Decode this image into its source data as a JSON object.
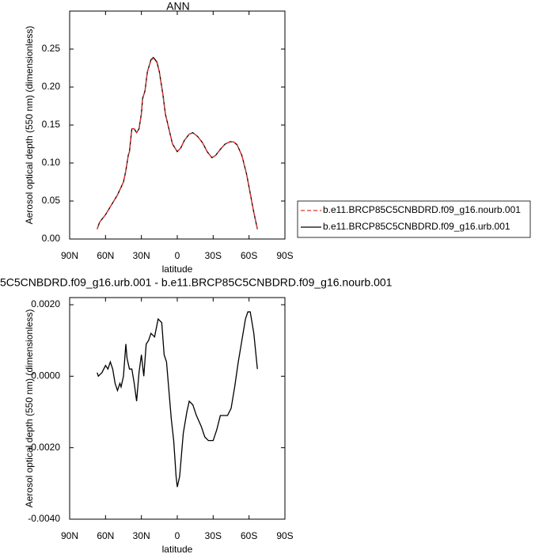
{
  "chart_data": [
    {
      "type": "line",
      "title": "ANN",
      "x_label": "latitude",
      "y_label": "Aerosol optical depth (550 nm) (dimensionless)",
      "x": [
        67,
        65,
        60,
        55,
        50,
        45,
        43,
        41,
        40,
        39,
        38,
        36,
        34,
        32,
        30,
        29,
        27,
        25,
        22,
        20,
        17,
        15,
        12,
        10,
        7,
        4,
        0,
        -3,
        -6,
        -10,
        -13,
        -17,
        -21,
        -25,
        -29,
        -32,
        -36,
        -40,
        -44,
        -47,
        -50,
        -54,
        -58,
        -61,
        -64,
        -67
      ],
      "series": [
        {
          "name": "b.e11.BRCP85C5CNBDRD.f09_g16.nourb.001",
          "color": "#e8312f",
          "line_style": "dashed",
          "values": [
            0.013,
            0.022,
            0.032,
            0.045,
            0.058,
            0.075,
            0.09,
            0.11,
            0.115,
            0.13,
            0.145,
            0.145,
            0.14,
            0.145,
            0.165,
            0.185,
            0.195,
            0.22,
            0.235,
            0.238,
            0.232,
            0.22,
            0.19,
            0.165,
            0.145,
            0.125,
            0.115,
            0.12,
            0.13,
            0.138,
            0.14,
            0.135,
            0.127,
            0.115,
            0.107,
            0.11,
            0.118,
            0.125,
            0.128,
            0.128,
            0.124,
            0.11,
            0.085,
            0.06,
            0.035,
            0.013
          ]
        },
        {
          "name": "b.e11.BRCP85C5CNBDRD.f09_g16.urb.001",
          "color": "#000000",
          "line_style": "solid",
          "values": [
            0.013,
            0.022,
            0.032,
            0.045,
            0.058,
            0.075,
            0.09,
            0.11,
            0.115,
            0.13,
            0.145,
            0.145,
            0.14,
            0.145,
            0.165,
            0.185,
            0.195,
            0.22,
            0.236,
            0.239,
            0.233,
            0.22,
            0.19,
            0.165,
            0.145,
            0.125,
            0.115,
            0.12,
            0.13,
            0.138,
            0.14,
            0.135,
            0.127,
            0.115,
            0.107,
            0.11,
            0.118,
            0.125,
            0.128,
            0.128,
            0.124,
            0.11,
            0.085,
            0.06,
            0.035,
            0.013
          ]
        }
      ],
      "xlim": [
        90,
        -90
      ],
      "xticks": [
        {
          "value": 90,
          "label": "90N"
        },
        {
          "value": 60,
          "label": "60N"
        },
        {
          "value": 30,
          "label": "30N"
        },
        0,
        {
          "value": -30,
          "label": "30S"
        },
        {
          "value": -60,
          "label": "60S"
        },
        {
          "value": -90,
          "label": "90S"
        }
      ],
      "ylim": [
        0,
        0.3
      ],
      "yticks": [
        {
          "value": 0,
          "label": "0.00"
        },
        0.05,
        {
          "value": 0.1,
          "label": "0.10"
        },
        0.15,
        {
          "value": 0.2,
          "label": "0.20"
        },
        0.25
      ],
      "legend": "right"
    },
    {
      "type": "line",
      "title": "5C5CNBDRD.f09_g16.urb.001 - b.e11.BRCP85C5CNBDRD.f09_g16.nourb.001",
      "x_label": "latitude",
      "y_label": "Aerosol optical depth (550 nm) (dimensionless)",
      "x": [
        67,
        66,
        63,
        60,
        58,
        56,
        54,
        52,
        50,
        48,
        47,
        45,
        43,
        42,
        40,
        38,
        36,
        34,
        32,
        30,
        28,
        26,
        24,
        22,
        19,
        16,
        13,
        11,
        9,
        7,
        5,
        3,
        1,
        0,
        -2,
        -5,
        -8,
        -10,
        -13,
        -16,
        -20,
        -23,
        -26,
        -30,
        -33,
        -36,
        -39,
        -42,
        -45,
        -48,
        -51,
        -54,
        -57,
        -59,
        -61,
        -64,
        -67
      ],
      "series": [
        {
          "color": "#000000",
          "line_style": "solid",
          "values": [
            0.0001,
            0.0,
            0.0001,
            0.0003,
            0.0002,
            0.0004,
            0.0002,
            -0.0002,
            -0.0004,
            -0.0002,
            -0.0003,
            0.0,
            0.0009,
            0.0005,
            0.0002,
            0.0002,
            -0.0002,
            -0.0007,
            0.0001,
            0.0006,
            0.0,
            0.0009,
            0.001,
            0.0012,
            0.0011,
            0.0016,
            0.0015,
            0.0006,
            0.0004,
            -0.0004,
            -0.0012,
            -0.0018,
            -0.0028,
            -0.0031,
            -0.0028,
            -0.0016,
            -0.001,
            -0.0007,
            -0.0008,
            -0.0011,
            -0.0014,
            -0.0017,
            -0.0018,
            -0.0018,
            -0.0015,
            -0.0011,
            -0.0011,
            -0.0011,
            -0.0009,
            -0.0003,
            0.0004,
            0.001,
            0.0016,
            0.0018,
            0.0018,
            0.0012,
            0.0002
          ]
        }
      ],
      "xlim": [
        90,
        -90
      ],
      "xticks": [
        {
          "value": 90,
          "label": "90N"
        },
        {
          "value": 60,
          "label": "60N"
        },
        {
          "value": 30,
          "label": "30N"
        },
        0,
        {
          "value": -30,
          "label": "30S"
        },
        {
          "value": -60,
          "label": "60S"
        },
        {
          "value": -90,
          "label": "90S"
        }
      ],
      "ylim": [
        -0.004,
        0.0022
      ],
      "yticks": [
        {
          "value": 0.002,
          "label": "0.0020"
        },
        {
          "value": 0,
          "label": "0.0000"
        },
        {
          "value": -0.002,
          "label": "-0.0020"
        },
        {
          "value": -0.004,
          "label": "-0.0040"
        }
      ]
    }
  ]
}
